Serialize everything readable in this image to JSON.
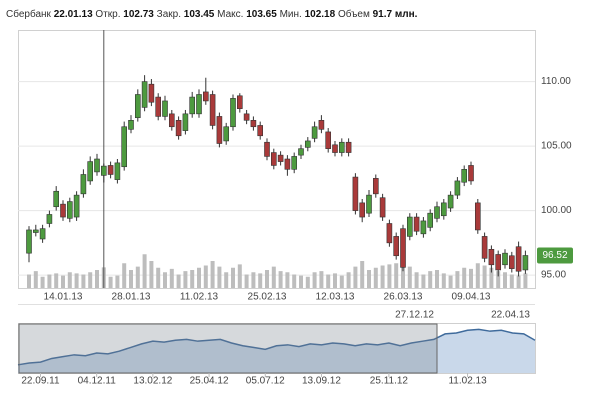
{
  "chart_data": {
    "type": "candlestick",
    "header": {
      "name": "Сбербанк",
      "date": "22.01.13",
      "open_label": "Откр.",
      "open": 102.73,
      "close_label": "Закр.",
      "close": 103.45,
      "high_label": "Макс.",
      "high": 103.65,
      "low_label": "Мин.",
      "low": 102.18,
      "volume_label": "Объем",
      "volume": "91.7 млн."
    },
    "categories": [
      null,
      null,
      null,
      null,
      null,
      "14.01.13",
      null,
      null,
      null,
      null,
      null,
      null,
      null,
      null,
      null,
      "28.01.13",
      null,
      null,
      null,
      null,
      null,
      null,
      null,
      null,
      null,
      "11.02.13",
      null,
      null,
      null,
      null,
      null,
      null,
      null,
      null,
      null,
      "25.02.13",
      null,
      null,
      null,
      null,
      null,
      null,
      null,
      null,
      null,
      "12.03.13",
      null,
      null,
      null,
      null,
      null,
      null,
      null,
      null,
      null,
      "26.03.13",
      null,
      null,
      null,
      null,
      null,
      null,
      null,
      null,
      null,
      "09.04.13",
      null,
      null,
      null,
      null,
      null,
      null,
      null,
      null
    ],
    "open": [
      96.7,
      98.3,
      97.8,
      99.0,
      100.3,
      100.5,
      99.4,
      99.5,
      101.3,
      102.3,
      103.0,
      102.73,
      103.5,
      102.4,
      103.4,
      106.3,
      107.2,
      108.0,
      109.8,
      108.8,
      107.3,
      107.5,
      107.0,
      106.2,
      107.5,
      107.5,
      109.2,
      109.0,
      107.3,
      105.4,
      106.5,
      108.9,
      107.5,
      107.0,
      106.6,
      105.3,
      104.5,
      104.3,
      104.0,
      103.2,
      104.3,
      104.9,
      105.6,
      107.0,
      106.1,
      105.1,
      104.5,
      105.3,
      102.6,
      100.6,
      99.8,
      102.5,
      101.0,
      99.0,
      98.0,
      98.6,
      98.0,
      99.5,
      98.2,
      98.7,
      99.4,
      99.6,
      100.2,
      101.2,
      102.2,
      103.5,
      100.6,
      98.0,
      97.0,
      96.6,
      95.8,
      96.5,
      97.2,
      95.4
    ],
    "close": [
      98.5,
      98.5,
      98.6,
      99.7,
      101.5,
      99.5,
      100.7,
      101.2,
      102.8,
      103.8,
      104.0,
      103.45,
      102.8,
      103.7,
      106.5,
      107.0,
      109.0,
      110.0,
      108.4,
      107.3,
      108.5,
      106.5,
      105.8,
      107.5,
      108.8,
      109.0,
      108.5,
      106.6,
      105.2,
      106.5,
      108.7,
      107.9,
      107.0,
      106.5,
      105.8,
      104.2,
      103.5,
      103.8,
      103.2,
      104.2,
      104.8,
      105.4,
      106.5,
      106.3,
      104.8,
      104.5,
      105.3,
      104.5,
      100.0,
      99.5,
      101.2,
      101.3,
      99.5,
      97.5,
      96.5,
      95.6,
      99.5,
      98.4,
      99.2,
      99.8,
      100.3,
      100.6,
      101.2,
      102.3,
      103.2,
      102.3,
      98.5,
      96.3,
      95.8,
      95.4,
      96.7,
      95.5,
      95.3,
      96.52
    ],
    "high": [
      98.8,
      98.9,
      98.9,
      100.0,
      101.9,
      100.8,
      101.0,
      101.5,
      103.2,
      104.2,
      104.4,
      103.65,
      103.8,
      104.0,
      106.9,
      107.4,
      109.4,
      110.5,
      110.2,
      109.1,
      108.9,
      107.8,
      107.3,
      107.8,
      109.2,
      109.4,
      110.3,
      109.3,
      107.6,
      106.8,
      109.0,
      109.1,
      107.8,
      107.3,
      106.9,
      105.6,
      104.8,
      104.6,
      104.3,
      104.5,
      105.1,
      105.7,
      106.9,
      107.4,
      106.4,
      105.4,
      105.6,
      105.6,
      102.9,
      100.9,
      101.6,
      102.8,
      101.3,
      99.3,
      98.3,
      98.9,
      99.8,
      99.8,
      99.5,
      100.1,
      100.7,
      100.9,
      101.5,
      102.6,
      103.5,
      103.8,
      100.9,
      98.3,
      97.3,
      96.9,
      97.0,
      96.8,
      97.6,
      96.9
    ],
    "low": [
      96.0,
      98.0,
      97.5,
      98.7,
      100.0,
      99.2,
      99.1,
      99.2,
      101.0,
      102.0,
      102.7,
      102.18,
      102.5,
      102.1,
      103.1,
      106.0,
      106.9,
      107.7,
      108.1,
      107.0,
      107.0,
      106.2,
      105.5,
      105.9,
      107.2,
      107.2,
      108.2,
      106.3,
      104.9,
      105.1,
      106.2,
      107.6,
      106.7,
      106.2,
      105.5,
      103.9,
      103.2,
      103.5,
      102.7,
      102.9,
      104.0,
      104.6,
      105.3,
      106.0,
      104.5,
      104.2,
      104.2,
      104.2,
      99.7,
      99.1,
      99.5,
      101.0,
      99.2,
      97.2,
      96.2,
      95.3,
      97.7,
      98.1,
      97.9,
      98.4,
      99.1,
      99.3,
      99.9,
      100.9,
      101.9,
      102.0,
      98.2,
      96.0,
      95.2,
      94.9,
      95.5,
      95.2,
      94.9,
      95.1
    ],
    "up_color": "#4d9a3f",
    "down_color": "#a93a3a",
    "ylim": [
      94.0,
      114.0
    ],
    "yticks": [
      {
        "value": 95,
        "label": "95.00"
      },
      {
        "value": 100,
        "label": "100.00"
      },
      {
        "value": 105,
        "label": "105.00"
      },
      {
        "value": 110,
        "label": "110.00"
      }
    ],
    "grid": true,
    "volume": {
      "values": [
        60,
        75,
        50,
        60,
        65,
        55,
        70,
        65,
        60,
        70,
        80,
        91.7,
        50,
        55,
        110,
        80,
        95,
        150,
        120,
        90,
        70,
        85,
        60,
        75,
        80,
        90,
        100,
        120,
        95,
        70,
        90,
        105,
        60,
        70,
        65,
        80,
        95,
        75,
        70,
        60,
        55,
        50,
        70,
        75,
        60,
        65,
        55,
        70,
        95,
        120,
        80,
        90,
        100,
        105,
        110,
        120,
        95,
        70,
        60,
        75,
        80,
        65,
        55,
        75,
        90,
        85,
        110,
        100,
        90,
        75,
        70,
        60,
        55,
        65
      ],
      "ylim": [
        0,
        200
      ],
      "color": "#bdbdbd"
    },
    "navigator": {
      "categories": [
        null,
        null,
        "22.09.11",
        null,
        null,
        null,
        null,
        "04.12.11",
        null,
        null,
        null,
        null,
        "13.02.12",
        null,
        null,
        null,
        null,
        "25.04.12",
        null,
        null,
        null,
        null,
        "05.07.12",
        null,
        null,
        null,
        null,
        "13.09.12",
        null,
        null,
        null,
        null,
        null,
        "25.11.12",
        null,
        null,
        null,
        null,
        null,
        null,
        "11.02.13",
        null,
        null,
        null,
        null,
        null,
        null
      ],
      "values": [
        69,
        71,
        72,
        76,
        78,
        80,
        79,
        82,
        81,
        84,
        88,
        92,
        95,
        94,
        96,
        97,
        95,
        96,
        97,
        93,
        90,
        88,
        86,
        90,
        91,
        89,
        92,
        91,
        93,
        92,
        90,
        92,
        91,
        93,
        90,
        93,
        95,
        97,
        103,
        104,
        107,
        108,
        106,
        107,
        104,
        103,
        96
      ],
      "ylim": [
        60,
        115
      ],
      "range_labels": [
        "27.12.12",
        "22.04.13"
      ],
      "line_color": "#3f6b9c",
      "fill_color": "#c9d8ea"
    }
  }
}
